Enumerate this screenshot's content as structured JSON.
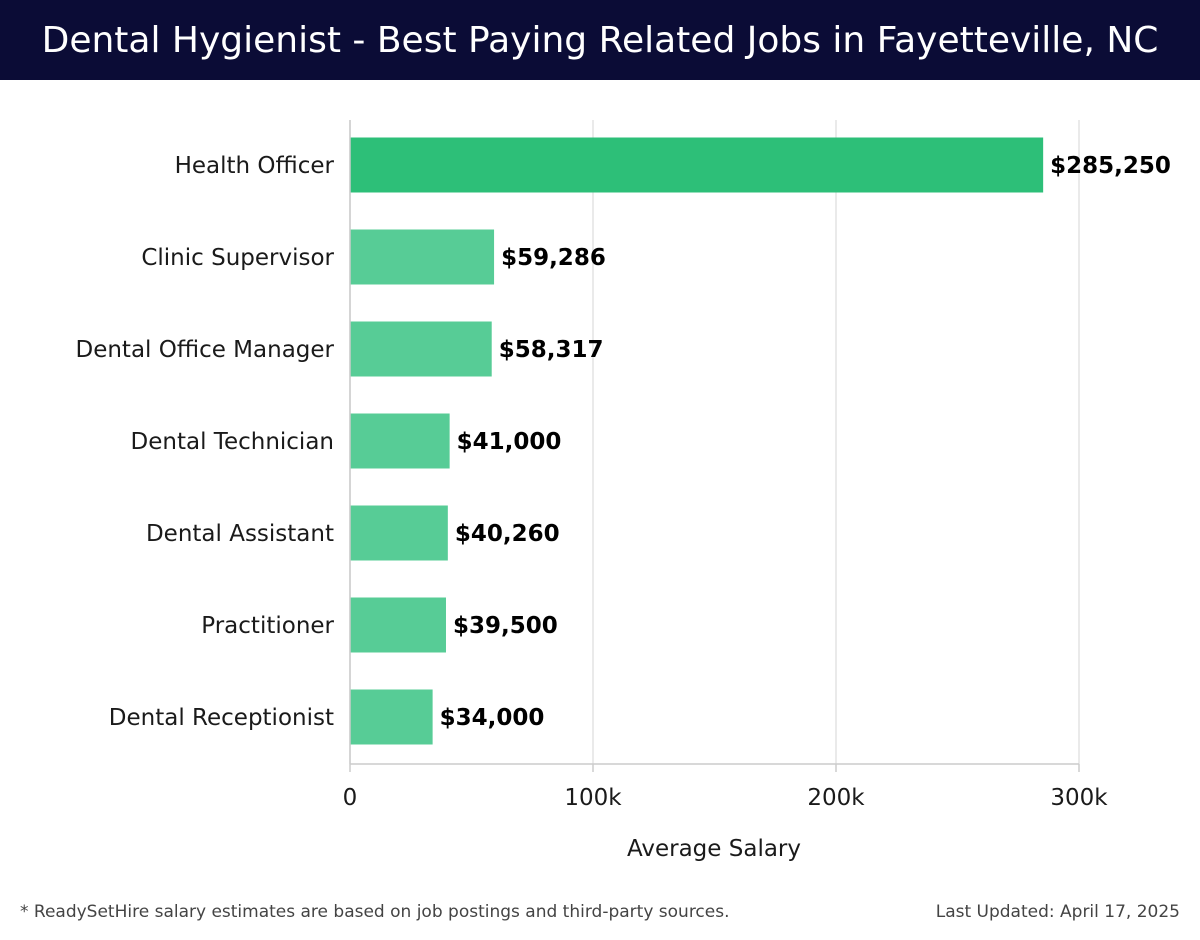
{
  "header": {
    "title": "Dental Hygienist - Best Paying Related Jobs in Fayetteville, NC"
  },
  "chart_data": {
    "type": "bar",
    "orientation": "horizontal",
    "categories": [
      "Health Officer",
      "Clinic Supervisor",
      "Dental Office Manager",
      "Dental Technician",
      "Dental Assistant",
      "Practitioner",
      "Dental Receptionist"
    ],
    "values": [
      285250,
      59286,
      58317,
      41000,
      40260,
      39500,
      34000
    ],
    "value_labels": [
      "$285,250",
      "$59,286",
      "$58,317",
      "$41,000",
      "$40,260",
      "$39,500",
      "$34,000"
    ],
    "xlabel": "Average Salary",
    "ylabel": "",
    "xlim": [
      0,
      300000
    ],
    "xticks": [
      0,
      100000,
      200000,
      300000
    ],
    "xtick_labels": [
      "0",
      "100k",
      "200k",
      "300k"
    ],
    "grid": "vertical",
    "colors": {
      "highlight": "#2dbf78",
      "bar": "#57cc96",
      "grid": "#e3e3e3",
      "axis": "#cccccc"
    }
  },
  "footer": {
    "note": "* ReadySetHire salary estimates are based on job postings and third-party sources.",
    "updated": "Last Updated: April 17, 2025"
  }
}
